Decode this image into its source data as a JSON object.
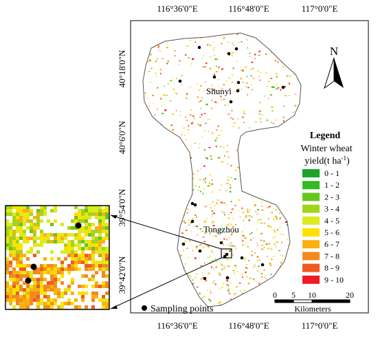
{
  "axes": {
    "top_ticks": [
      "116°36'0\"E",
      "116°48'0\"E",
      "117°0'0\"E"
    ],
    "bottom_ticks": [
      "116°36'0\"E",
      "116°48'0\"E",
      "117°0'0\"E"
    ],
    "left_ticks": [
      "40°18'0\"N",
      "40°6'0\"N",
      "39°54'0\"N",
      "39°42'0\"N"
    ]
  },
  "places": {
    "north": "Shunyi",
    "south": "Tongzhou"
  },
  "north_arrow": {
    "label": "N",
    "icon": "north-arrow-icon"
  },
  "legend": {
    "title": "Legend",
    "subtitle_main": "Winter wheat",
    "subtitle_unit": "yield(t ha",
    "subtitle_sup": "-1",
    "subtitle_close": ")",
    "classes": [
      {
        "label": "0 - 1",
        "color": "#1aa52a"
      },
      {
        "label": "1 - 2",
        "color": "#33bb22"
      },
      {
        "label": "2 - 3",
        "color": "#66c61e"
      },
      {
        "label": "3 - 4",
        "color": "#a4d41a"
      },
      {
        "label": "4 - 5",
        "color": "#dcea1e"
      },
      {
        "label": "5 - 6",
        "color": "#ffe000"
      },
      {
        "label": "6 - 7",
        "color": "#fbb010"
      },
      {
        "label": "7 - 8",
        "color": "#f38a1e"
      },
      {
        "label": "8 - 9",
        "color": "#ef5a22"
      },
      {
        "label": "9 - 10",
        "color": "#ed1c24"
      }
    ]
  },
  "scale_bar": {
    "ticks": [
      "0",
      "5",
      "10",
      "20"
    ],
    "unit": "Kilometers"
  },
  "sampling_legend": {
    "label": "Sampling points",
    "icon": "sampling-point-icon"
  }
}
